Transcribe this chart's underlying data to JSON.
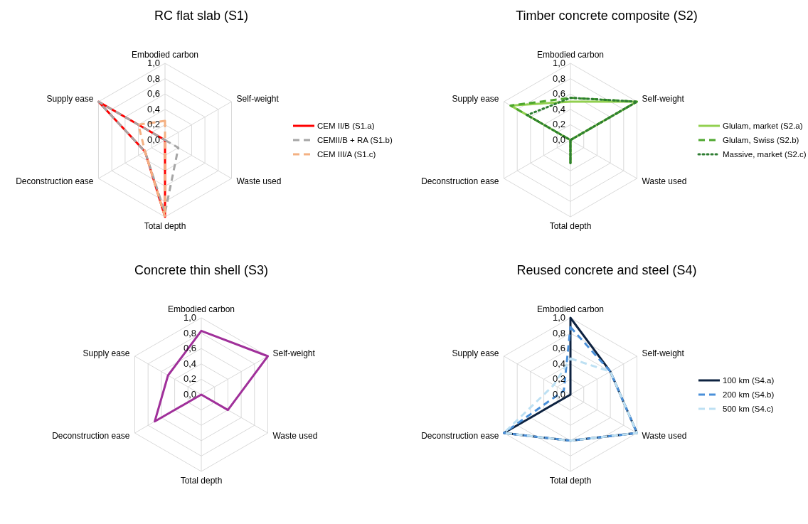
{
  "chart_data": [
    {
      "type": "radar",
      "title": "RC flat slab (S1)",
      "categories": [
        "Embodied carbon",
        "Self-weight",
        "Waste used",
        "Total depth",
        "Deconstruction ease",
        "Supply ease"
      ],
      "ylim": [
        0,
        1
      ],
      "yticks": [
        {
          "value": 0,
          "label": "0,0"
        },
        {
          "value": 0.2,
          "label": "0,2"
        },
        {
          "value": 0.4,
          "label": "0,4"
        },
        {
          "value": 0.6,
          "label": "0,6"
        },
        {
          "value": 0.8,
          "label": "0,8"
        },
        {
          "value": 1,
          "label": "1,0"
        }
      ],
      "grid": true,
      "legend": "right",
      "marker": "none",
      "series": [
        {
          "name": "CEM II/B (S1.a)",
          "color": "#ff0000",
          "line_style": "solid",
          "values": [
            0,
            0,
            0,
            1,
            0.3,
            1
          ]
        },
        {
          "name": "CEMII/B + RA (S1.b)",
          "color": "#a6a6a6",
          "line_style": "dashed",
          "values": [
            0,
            0,
            0.2,
            0.95,
            0.3,
            1
          ]
        },
        {
          "name": "CEM III/A (S1.c)",
          "color": "#f4b183",
          "line_style": "dashed",
          "values": [
            0.25,
            0,
            0,
            1,
            0.3,
            0.4
          ]
        }
      ]
    },
    {
      "type": "radar",
      "title": "Timber concrete composite (S2)",
      "categories": [
        "Embodied carbon",
        "Self-weight",
        "Waste used",
        "Total depth",
        "Deconstruction ease",
        "Supply ease"
      ],
      "ylim": [
        0,
        1
      ],
      "yticks": [
        {
          "value": 0,
          "label": "0,0"
        },
        {
          "value": 0.2,
          "label": "0,2"
        },
        {
          "value": 0.4,
          "label": "0,4"
        },
        {
          "value": 0.6,
          "label": "0,6"
        },
        {
          "value": 0.8,
          "label": "0,8"
        },
        {
          "value": 1,
          "label": "1,0"
        }
      ],
      "grid": true,
      "legend": "right",
      "marker": "none",
      "series": [
        {
          "name": "Glulam, market (S2.a)",
          "color": "#92d050",
          "line_style": "solid",
          "values": [
            0.5,
            1,
            0,
            0.3,
            0,
            0.9
          ]
        },
        {
          "name": "Glulam, Swiss (S2.b)",
          "color": "#4ea72e",
          "line_style": "dashed",
          "values": [
            0.55,
            1,
            0,
            0.3,
            0,
            0.9
          ]
        },
        {
          "name": "Massive, market  (S2.c)",
          "color": "#2e7d32",
          "line_style": "dotted",
          "values": [
            0.55,
            1,
            0,
            0.3,
            0,
            0.65
          ]
        }
      ]
    },
    {
      "type": "radar",
      "title": "Concrete thin shell (S3)",
      "categories": [
        "Embodied carbon",
        "Self-weight",
        "Waste used",
        "Total depth",
        "Deconstruction ease",
        "Supply ease"
      ],
      "ylim": [
        0,
        1
      ],
      "yticks": [
        {
          "value": 0,
          "label": "0,0"
        },
        {
          "value": 0.2,
          "label": "0,2"
        },
        {
          "value": 0.4,
          "label": "0,4"
        },
        {
          "value": 0.6,
          "label": "0,6"
        },
        {
          "value": 0.8,
          "label": "0,8"
        },
        {
          "value": 1,
          "label": "1,0"
        }
      ],
      "grid": true,
      "marker": "none",
      "series": [
        {
          "color": "#a0309a",
          "line_style": "solid",
          "values": [
            0.83,
            1,
            0.4,
            0,
            0.7,
            0.5
          ]
        }
      ]
    },
    {
      "type": "radar",
      "title": "Reused concrete and steel (S4)",
      "categories": [
        "Embodied carbon",
        "Self-weight",
        "Waste used",
        "Total depth",
        "Deconstruction ease",
        "Supply ease"
      ],
      "ylim": [
        0,
        1
      ],
      "yticks": [
        {
          "value": 0,
          "label": "0,0"
        },
        {
          "value": 0.2,
          "label": "0,2"
        },
        {
          "value": 0.4,
          "label": "0,4"
        },
        {
          "value": 0.6,
          "label": "0,6"
        },
        {
          "value": 0.8,
          "label": "0,8"
        },
        {
          "value": 1,
          "label": "1,0"
        }
      ],
      "grid": true,
      "legend": "right",
      "marker": "none",
      "series": [
        {
          "name": "100 km (S4.a)",
          "color": "#0d2240",
          "line_style": "solid",
          "values": [
            1,
            0.6,
            1,
            0.6,
            1,
            0
          ]
        },
        {
          "name": "200 km (S4.b)",
          "color": "#4a90d9",
          "line_style": "dashed",
          "values": [
            0.88,
            0.6,
            1,
            0.6,
            1,
            0.1
          ]
        },
        {
          "name": "500 km (S4.c)",
          "color": "#bde0f3",
          "line_style": "dashed",
          "values": [
            0.47,
            0.6,
            1,
            0.6,
            1,
            0.25
          ]
        }
      ]
    }
  ]
}
